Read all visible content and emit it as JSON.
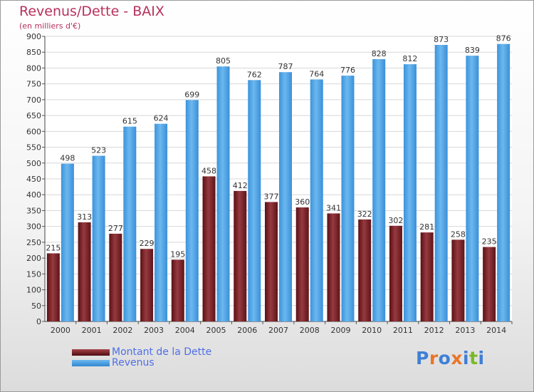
{
  "header": {
    "title": "Revenus/Dette - BAIX",
    "subtitle": "(en milliers d'€)"
  },
  "legend": {
    "items": [
      {
        "label": "Montant de la Dette",
        "color": "#7a1f24"
      },
      {
        "label": "Revenus",
        "color": "#4aa3e6"
      }
    ]
  },
  "logo": {
    "text": "Proxiti",
    "letter_colors": [
      "#3f7fd6",
      "#e9752a",
      "#3f7fd6",
      "#e9752a",
      "#3f7fd6",
      "#79b928",
      "#3f7fd6"
    ]
  },
  "chart_data": {
    "type": "bar",
    "categories": [
      "2000",
      "2001",
      "2002",
      "2003",
      "2004",
      "2005",
      "2006",
      "2007",
      "2008",
      "2009",
      "2010",
      "2011",
      "2012",
      "2013",
      "2014"
    ],
    "series": [
      {
        "name": "Montant de la Dette",
        "values": [
          215,
          313,
          277,
          229,
          195,
          458,
          412,
          377,
          360,
          341,
          322,
          302,
          281,
          258,
          235
        ],
        "color": "#7a1f24"
      },
      {
        "name": "Revenus",
        "values": [
          498,
          523,
          615,
          624,
          699,
          805,
          762,
          787,
          764,
          776,
          828,
          812,
          873,
          839,
          876
        ],
        "color": "#4aa3e6"
      }
    ],
    "title": "Revenus/Dette - BAIX",
    "ylabel": "(en milliers d'€)",
    "ylim": [
      0,
      900
    ],
    "ytick_step": 50,
    "grid": true,
    "legend_position": "bottom-left"
  }
}
